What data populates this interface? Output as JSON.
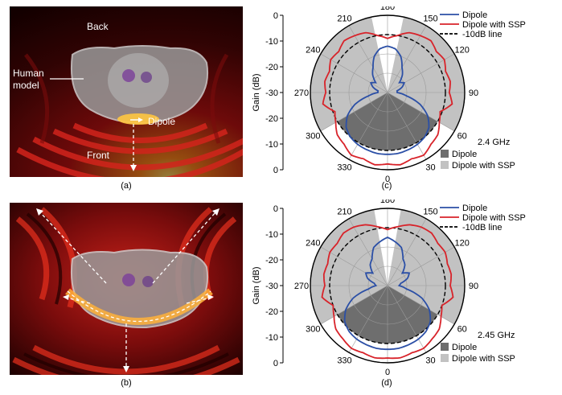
{
  "figure": {
    "panel_a": {
      "caption": "(a)",
      "labels": {
        "back": "Back",
        "human_model": "Human model",
        "dipole": "Dipole",
        "front": "Front"
      }
    },
    "panel_b": {
      "caption": "(b)"
    },
    "panel_c": {
      "caption": "(c)",
      "frequency": "2.4 GHz"
    },
    "panel_d": {
      "caption": "(d)",
      "frequency": "2.45 GHz"
    }
  },
  "chart_data": [
    {
      "type": "polar",
      "panel": "(c)",
      "frequency": "2.4 GHz",
      "ylabel": "Gain (dB)",
      "r_ticks": [
        "0",
        "-10",
        "-20",
        "-30",
        "-20",
        "-10",
        "0"
      ],
      "angle_ticks": [
        "180",
        "150",
        "120",
        "90",
        "60",
        "30",
        "0",
        "330",
        "300",
        "270",
        "240",
        "210"
      ],
      "rlim": [
        -40,
        0
      ],
      "legend_lines": [
        "Dipole",
        "Dipole with SSP",
        "-10dB line"
      ],
      "legend_shades": [
        "Dipole",
        "Dipole with SSP"
      ],
      "colors": {
        "dipole": "#2b4fa6",
        "ssp": "#d8232a",
        "shade_dipole": "#6e6e6e",
        "shade_ssp": "#c2c2c2"
      },
      "series": [
        {
          "name": "Dipole",
          "angles": [
            0,
            10,
            20,
            30,
            40,
            50,
            60,
            70,
            80,
            90,
            100,
            110,
            120,
            130,
            140,
            150,
            160,
            170,
            180,
            190,
            200,
            210,
            220,
            230,
            240,
            250,
            260,
            270,
            280,
            290,
            300,
            310,
            320,
            330,
            340,
            350
          ],
          "values": [
            -8,
            -8,
            -8.5,
            -9,
            -10,
            -12,
            -16,
            -22,
            -30,
            -35,
            -35,
            -32,
            -30,
            -32,
            -28,
            -25,
            -20,
            -17,
            -16,
            -17,
            -20,
            -25,
            -28,
            -32,
            -30,
            -32,
            -35,
            -35,
            -30,
            -22,
            -16,
            -12,
            -10,
            -9,
            -8.5,
            -8
          ]
        },
        {
          "name": "Dipole with SSP",
          "angles": [
            0,
            10,
            20,
            30,
            40,
            50,
            60,
            70,
            80,
            90,
            100,
            110,
            120,
            130,
            140,
            150,
            160,
            170,
            180,
            190,
            200,
            210,
            220,
            230,
            240,
            250,
            260,
            270,
            280,
            290,
            300,
            310,
            320,
            330,
            340,
            350
          ],
          "values": [
            -3,
            -2,
            -3.5,
            -2.5,
            -5,
            -6,
            -9,
            -11,
            -6,
            -8,
            -7,
            -8,
            -6,
            -7,
            -5,
            -6,
            -7,
            -10,
            -12,
            -10,
            -7,
            -6,
            -5,
            -7,
            -6,
            -8,
            -7,
            -8,
            -6,
            -11,
            -9,
            -6,
            -5,
            -2.5,
            -3.5,
            -2
          ]
        },
        {
          "name": "-10dB line",
          "values": [
            -10
          ]
        }
      ],
      "shaded_sectors_deg": {
        "Dipole": [
          [
            300,
            60
          ]
        ],
        "Dipole with SSP": [
          [
            60,
            168
          ],
          [
            192,
            300
          ]
        ]
      }
    },
    {
      "type": "polar",
      "panel": "(d)",
      "frequency": "2.45 GHz",
      "ylabel": "Gain (dB)",
      "r_ticks": [
        "0",
        "-10",
        "-20",
        "-30",
        "-20",
        "-10",
        "0"
      ],
      "angle_ticks": [
        "180",
        "150",
        "120",
        "90",
        "60",
        "30",
        "0",
        "330",
        "300",
        "270",
        "240",
        "210"
      ],
      "rlim": [
        -40,
        0
      ],
      "legend_lines": [
        "Dipole",
        "Dipole with SSP",
        "-10dB line"
      ],
      "legend_shades": [
        "Dipole",
        "Dipole with SSP"
      ],
      "colors": {
        "dipole": "#2b4fa6",
        "ssp": "#d8232a",
        "shade_dipole": "#6e6e6e",
        "shade_ssp": "#c2c2c2"
      },
      "series": [
        {
          "name": "Dipole",
          "angles": [
            0,
            10,
            20,
            30,
            40,
            50,
            60,
            70,
            80,
            90,
            100,
            110,
            120,
            130,
            140,
            150,
            160,
            170,
            180,
            190,
            200,
            210,
            220,
            230,
            240,
            250,
            260,
            270,
            280,
            290,
            300,
            310,
            320,
            330,
            340,
            350
          ],
          "values": [
            -7,
            -7,
            -7.5,
            -8,
            -9,
            -11,
            -15,
            -21,
            -30,
            -34,
            -33,
            -29,
            -27,
            -30,
            -26,
            -24,
            -19,
            -17,
            -15,
            -17,
            -19,
            -24,
            -26,
            -30,
            -27,
            -29,
            -33,
            -34,
            -30,
            -21,
            -15,
            -11,
            -9,
            -8,
            -7.5,
            -7
          ]
        },
        {
          "name": "Dipole with SSP",
          "angles": [
            0,
            10,
            20,
            30,
            40,
            50,
            60,
            70,
            80,
            90,
            100,
            110,
            120,
            130,
            140,
            150,
            160,
            170,
            180,
            190,
            200,
            210,
            220,
            230,
            240,
            250,
            260,
            270,
            280,
            290,
            300,
            310,
            320,
            330,
            340,
            350
          ],
          "values": [
            -2.5,
            -2,
            -3,
            -2.5,
            -4,
            -5,
            -8,
            -10,
            -5.5,
            -7.5,
            -6.5,
            -7,
            -5.5,
            -6,
            -4.5,
            -5,
            -6.5,
            -9,
            -11,
            -9,
            -6.5,
            -5,
            -4.5,
            -6,
            -5.5,
            -7,
            -6.5,
            -7.5,
            -5.5,
            -10,
            -8,
            -5,
            -4,
            -2.5,
            -3,
            -2
          ]
        },
        {
          "name": "-10dB line",
          "values": [
            -10
          ]
        }
      ],
      "shaded_sectors_deg": {
        "Dipole": [
          [
            300,
            60
          ]
        ],
        "Dipole with SSP": [
          [
            60,
            170
          ],
          [
            190,
            300
          ]
        ]
      }
    }
  ]
}
